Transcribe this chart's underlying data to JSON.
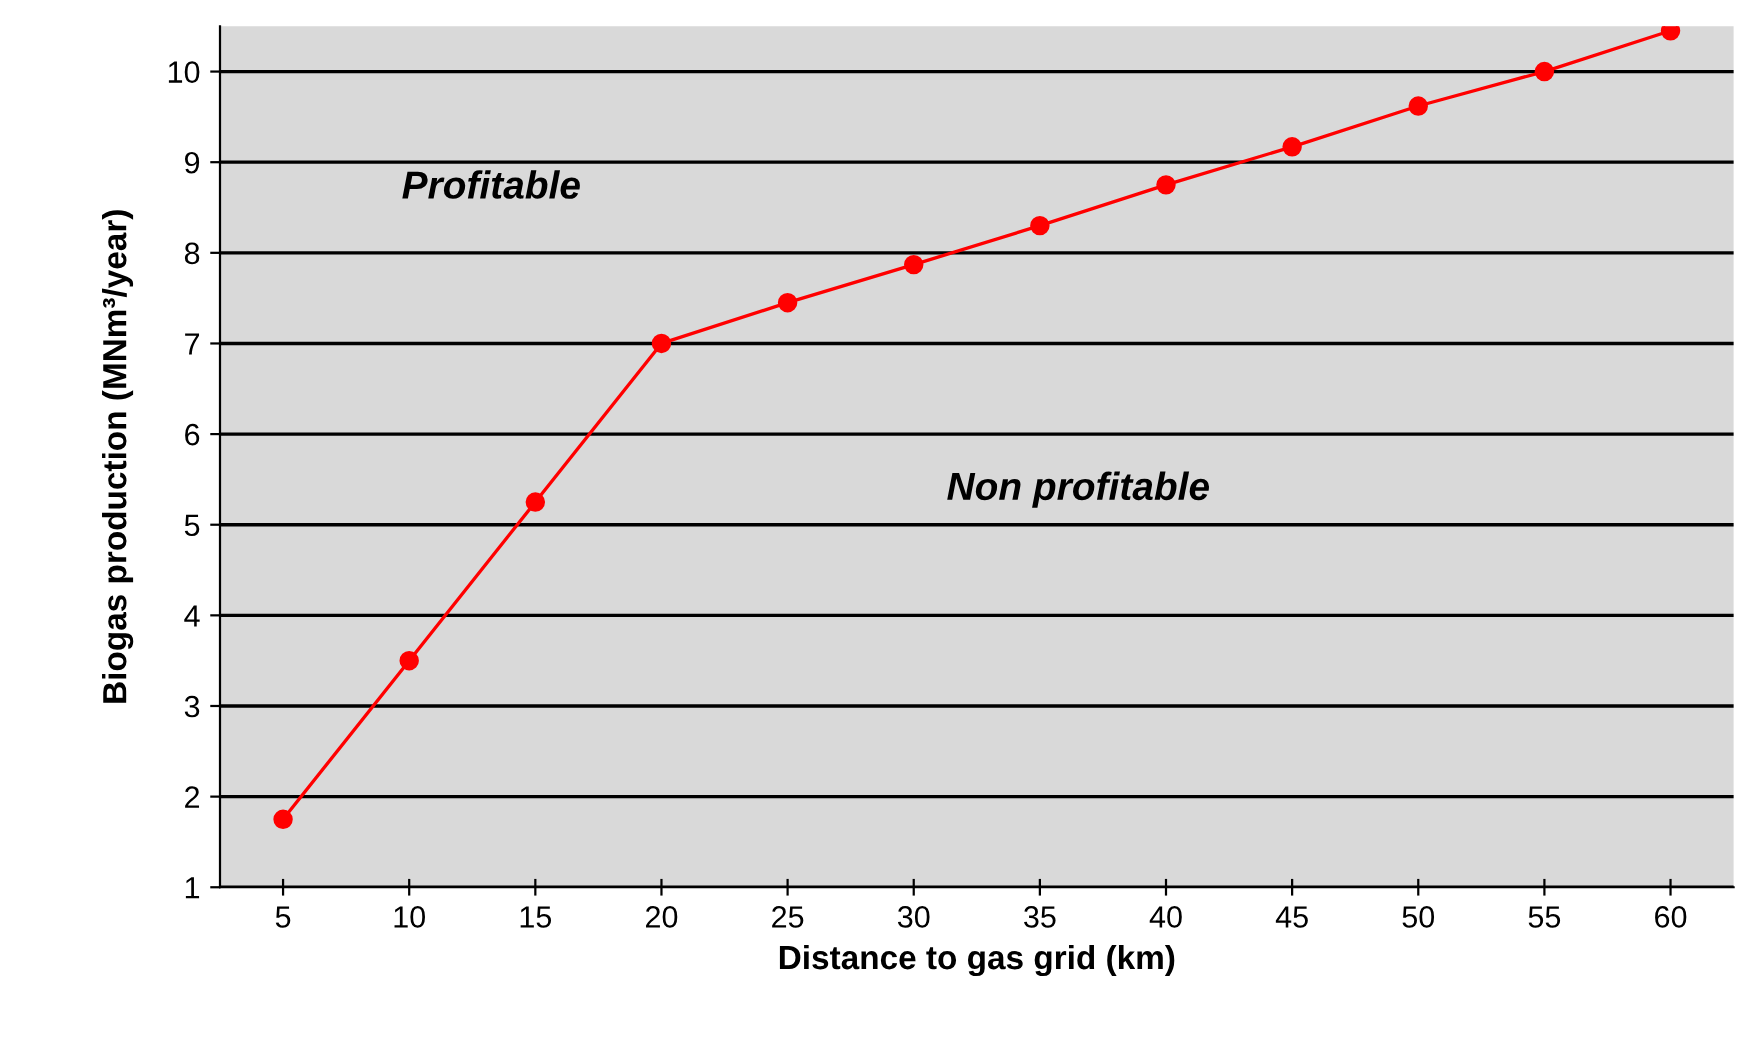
{
  "chart_data": {
    "type": "line",
    "xlabel": "Distance to gas grid (km)",
    "ylabel": "Biogas production (MNm³/year)",
    "categories": [
      "5",
      "10",
      "15",
      "20",
      "25",
      "30",
      "35",
      "40",
      "45",
      "50",
      "55",
      "60"
    ],
    "series": [
      {
        "color": "#ff0000",
        "values": [
          1.75,
          3.5,
          5.25,
          7.0,
          7.45,
          7.87,
          8.3,
          8.75,
          9.17,
          9.62,
          10.0,
          10.45
        ]
      }
    ],
    "ylim": [
      1,
      10.5
    ],
    "yticks": [
      1,
      2,
      3,
      4,
      5,
      6,
      7,
      8,
      9,
      10
    ],
    "grid": "y",
    "marker": "circle",
    "line_style": "solid",
    "annotations": [
      "Profitable",
      "Non profitable"
    ]
  }
}
